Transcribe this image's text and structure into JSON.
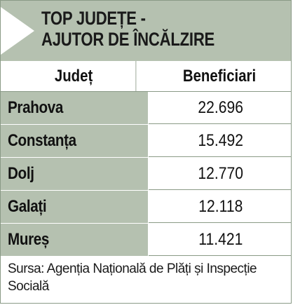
{
  "title": {
    "line1": "TOP JUDEȚE -",
    "line2": "AJUTOR DE ÎNCĂLZIRE"
  },
  "columns": {
    "county": "Județ",
    "beneficiaries": "Beneficiari"
  },
  "rows": [
    {
      "county": "Prahova",
      "beneficiaries": "22.696"
    },
    {
      "county": "Constanța",
      "beneficiaries": "15.492"
    },
    {
      "county": "Dolj",
      "beneficiaries": "12.770"
    },
    {
      "county": "Galați",
      "beneficiaries": "12.118"
    },
    {
      "county": "Mureș",
      "beneficiaries": "11.421"
    }
  ],
  "source": "Sursa: Agenția Națională de Plăți și Inspecție Socială",
  "colors": {
    "header_bg": "#b5c1b0",
    "row_label_bg": "#b5c1b0",
    "border": "#8a9a86"
  }
}
